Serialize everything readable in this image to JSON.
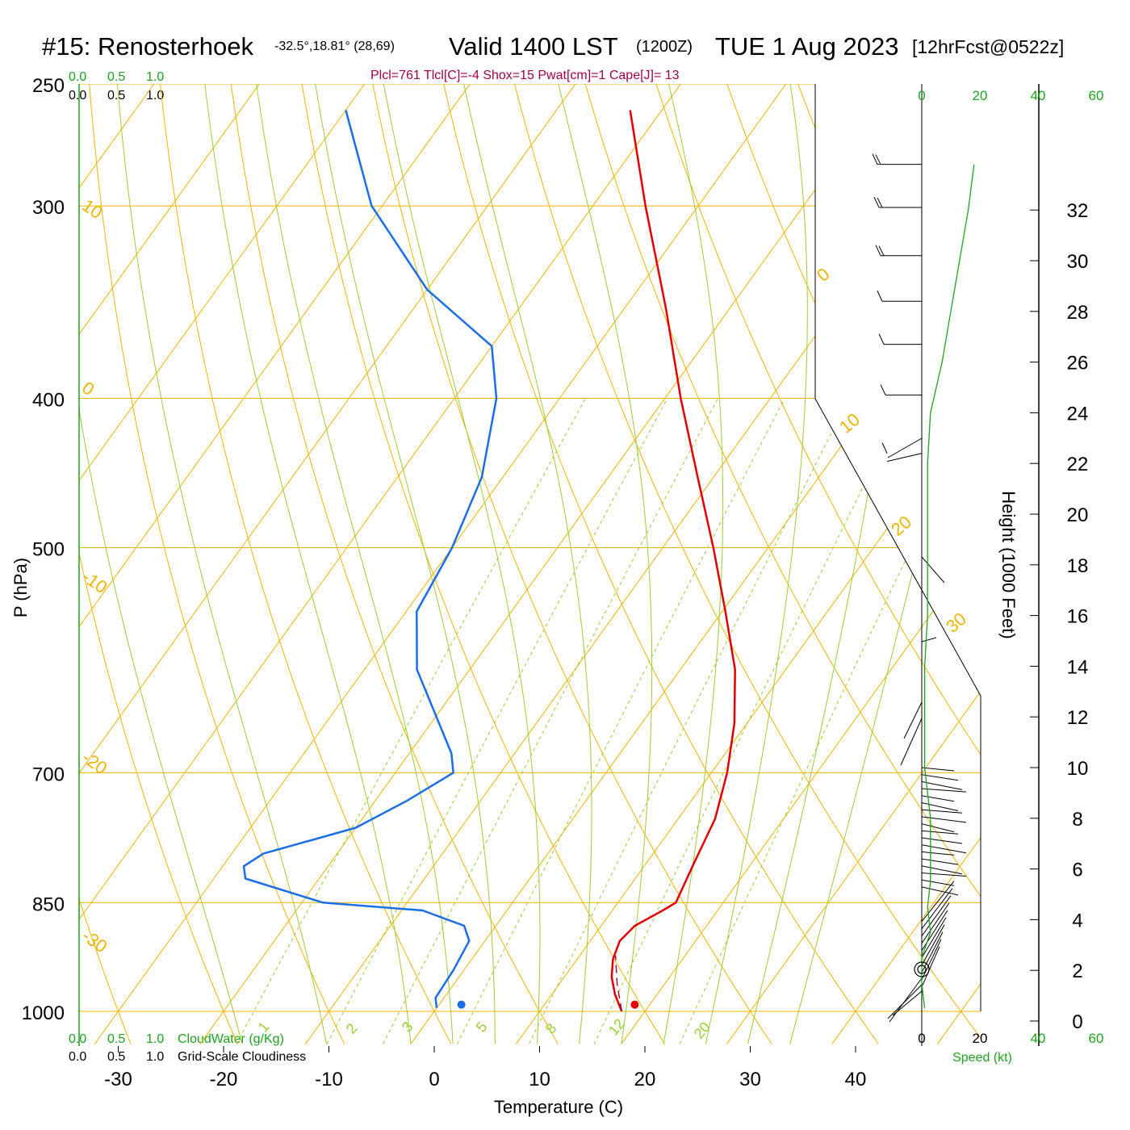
{
  "header": {
    "station": "#15: Renosterhoek",
    "coords": "-32.5°,18.81° (28,69)",
    "valid": "Valid 1400 LST",
    "zulu": "(1200Z)",
    "date": "TUE 1 Aug 2023",
    "forecast": "[12hrFcst@0522z]",
    "indices": "Plcl=761 Tlcl[C]=-4 Shox=15 Pwat[cm]=1 Cape[J]= 13"
  },
  "cloud_scale": {
    "top_green": [
      "0.0",
      "0.5",
      "1.0"
    ],
    "top_black": [
      "0.0",
      "0.5",
      "1.0"
    ],
    "bottom_green": [
      "0.0",
      "0.5",
      "1.0"
    ],
    "bottom_black": [
      "0.0",
      "0.5",
      "1.0"
    ],
    "cloudwater_label": "CloudWater (g/Kg)",
    "cloudiness_label": "Grid-Scale Cloudiness"
  },
  "chart_data": {
    "type": "line",
    "chart_kind": "skew-T log-P sounding",
    "xlabel": "Temperature (C)",
    "ylabel": "P (hPa)",
    "x_ticks": [
      "-30",
      "-20",
      "-10",
      "0",
      "10",
      "20",
      "30",
      "40"
    ],
    "y_ticks": [
      "250",
      "300",
      "400",
      "500",
      "700",
      "850",
      "1000"
    ],
    "pressure_range_hpa": [
      250,
      1000
    ],
    "height_label": "Height (1000 Feet)",
    "height_ticks": [
      "0",
      "2",
      "4",
      "6",
      "8",
      "10",
      "12",
      "14",
      "16",
      "18",
      "20",
      "22",
      "24",
      "26",
      "28",
      "30",
      "32"
    ],
    "speed_label": "Speed (kt)",
    "speed_ticks": [
      "0",
      "20",
      "40",
      "60"
    ],
    "temperature_profile": [
      {
        "p": 1000,
        "t": 17.8
      },
      {
        "p": 975,
        "t": 16.0
      },
      {
        "p": 950,
        "t": 14.5
      },
      {
        "p": 925,
        "t": 13.4
      },
      {
        "p": 900,
        "t": 12.8
      },
      {
        "p": 880,
        "t": 13.2
      },
      {
        "p": 860,
        "t": 14.8
      },
      {
        "p": 850,
        "t": 15.5
      },
      {
        "p": 800,
        "t": 14.5
      },
      {
        "p": 750,
        "t": 13.5
      },
      {
        "p": 700,
        "t": 11.5
      },
      {
        "p": 650,
        "t": 8.8
      },
      {
        "p": 600,
        "t": 5.2
      },
      {
        "p": 550,
        "t": 0.3
      },
      {
        "p": 500,
        "t": -5.2
      },
      {
        "p": 450,
        "t": -11.5
      },
      {
        "p": 400,
        "t": -18.5
      },
      {
        "p": 350,
        "t": -26.0
      },
      {
        "p": 300,
        "t": -35.0
      },
      {
        "p": 260,
        "t": -43.0
      }
    ],
    "dewpoint_profile": [
      {
        "p": 995,
        "t": 0.0
      },
      {
        "p": 980,
        "t": -0.8
      },
      {
        "p": 940,
        "t": -1.0
      },
      {
        "p": 900,
        "t": -1.5
      },
      {
        "p": 880,
        "t": -3.0
      },
      {
        "p": 860,
        "t": -8.0
      },
      {
        "p": 850,
        "t": -18.0
      },
      {
        "p": 820,
        "t": -27.0
      },
      {
        "p": 805,
        "t": -28.0
      },
      {
        "p": 790,
        "t": -27.0
      },
      {
        "p": 760,
        "t": -20.0
      },
      {
        "p": 730,
        "t": -17.0
      },
      {
        "p": 700,
        "t": -14.5
      },
      {
        "p": 680,
        "t": -16.0
      },
      {
        "p": 600,
        "t": -25.0
      },
      {
        "p": 550,
        "t": -29.0
      },
      {
        "p": 500,
        "t": -30.0
      },
      {
        "p": 450,
        "t": -32.0
      },
      {
        "p": 400,
        "t": -36.0
      },
      {
        "p": 370,
        "t": -40.0
      },
      {
        "p": 340,
        "t": -50.0
      },
      {
        "p": 300,
        "t": -61.0
      },
      {
        "p": 260,
        "t": -70.0
      }
    ],
    "parcel_trace": [
      {
        "p": 1000,
        "t": 17.8
      },
      {
        "p": 960,
        "t": 15.5
      },
      {
        "p": 920,
        "t": 13.4
      }
    ],
    "surface_temperature_c": 18.5,
    "surface_dewpoint_c": 2.5,
    "isotherm_labels": [
      "10",
      "0",
      "-10",
      "-20",
      "-30",
      "0",
      "10",
      "20",
      "30"
    ],
    "mixing_ratio_labels": [
      "1",
      "2",
      "3",
      "5",
      "8",
      "12",
      "20"
    ],
    "wind_speed_profile": [
      {
        "h": 0.5,
        "kt": 1
      },
      {
        "h": 1.5,
        "kt": 0
      },
      {
        "h": 2.5,
        "kt": 0
      },
      {
        "h": 3.5,
        "kt": 3
      },
      {
        "h": 4.5,
        "kt": 2
      },
      {
        "h": 5.5,
        "kt": 3
      },
      {
        "h": 6.5,
        "kt": 3
      },
      {
        "h": 8,
        "kt": 3
      },
      {
        "h": 10,
        "kt": 1
      },
      {
        "h": 12,
        "kt": 1
      },
      {
        "h": 14,
        "kt": 1
      },
      {
        "h": 16,
        "kt": 2
      },
      {
        "h": 18,
        "kt": 2
      },
      {
        "h": 20,
        "kt": 2
      },
      {
        "h": 22,
        "kt": 2
      },
      {
        "h": 24,
        "kt": 3
      },
      {
        "h": 26,
        "kt": 7
      },
      {
        "h": 28,
        "kt": 10
      },
      {
        "h": 30,
        "kt": 13
      },
      {
        "h": 32,
        "kt": 16
      },
      {
        "h": 33.8,
        "kt": 18
      }
    ],
    "colors": {
      "isobar": "#f0b400",
      "isotherm": "#f0b400",
      "dry_adiabat": "#f0b400",
      "moist_adiabat": "#9acd32",
      "mixing_ratio": "#9acd32",
      "temperature": "#e00000",
      "dewpoint": "#1a6fe8",
      "parcel": "#8b1a4a",
      "wind_speed": "#1fa21f"
    }
  }
}
